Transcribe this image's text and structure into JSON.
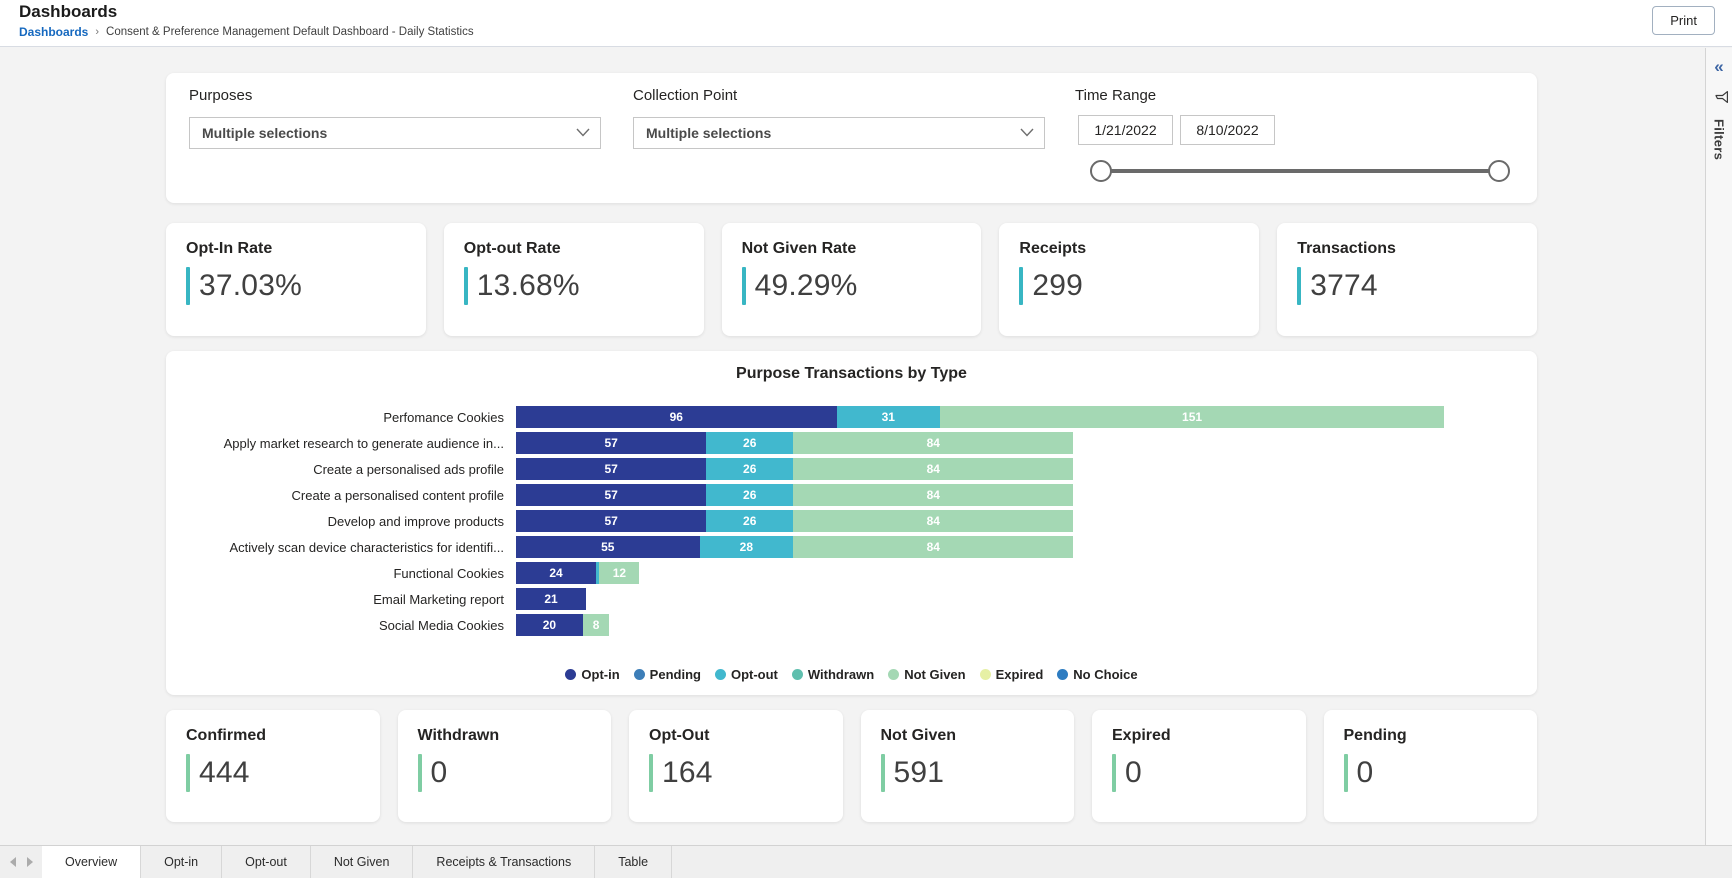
{
  "header": {
    "title": "Dashboards",
    "breadcrumb_root": "Dashboards",
    "breadcrumb_separator": "›",
    "breadcrumb_current": "Consent & Preference Management Default Dashboard - Daily Statistics",
    "print_label": "Print"
  },
  "filters_rail": {
    "collapse_icon": "«",
    "label": "Filters"
  },
  "filter_bar": {
    "purposes_label": "Purposes",
    "purposes_value": "Multiple selections",
    "collection_point_label": "Collection Point",
    "collection_point_value": "Multiple selections",
    "time_range_label": "Time Range",
    "start_date": "1/21/2022",
    "end_date": "8/10/2022"
  },
  "colors": {
    "kpi_top_accent": "#38B6C3",
    "kpi_bottom_accent": "#7FCDA3",
    "link_blue": "#1568BF"
  },
  "kpi_top": [
    {
      "label": "Opt-In Rate",
      "value": "37.03%"
    },
    {
      "label": "Opt-out Rate",
      "value": "13.68%"
    },
    {
      "label": "Not Given Rate",
      "value": "49.29%"
    },
    {
      "label": "Receipts",
      "value": "299"
    },
    {
      "label": "Transactions",
      "value": "3774"
    }
  ],
  "kpi_bottom": [
    {
      "label": "Confirmed",
      "value": "444"
    },
    {
      "label": "Withdrawn",
      "value": "0"
    },
    {
      "label": "Opt-Out",
      "value": "164"
    },
    {
      "label": "Not Given",
      "value": "591"
    },
    {
      "label": "Expired",
      "value": "0"
    },
    {
      "label": "Pending",
      "value": "0"
    }
  ],
  "chart_data": {
    "type": "bar",
    "orientation": "horizontal",
    "stacked": true,
    "title": "Purpose Transactions by Type",
    "axis_max": 278,
    "legend_position": "bottom",
    "categories": [
      "Perfomance Cookies",
      "Apply market research to generate audience in...",
      "Create a personalised ads profile",
      "Create a personalised content profile",
      "Develop and improve products",
      "Actively scan device characteristics for identifi...",
      "Functional Cookies",
      "Email Marketing report",
      "Social Media Cookies"
    ],
    "series": [
      {
        "name": "Opt-in",
        "color": "#2C3C94",
        "values": [
          96,
          57,
          57,
          57,
          57,
          55,
          24,
          21,
          20
        ]
      },
      {
        "name": "Pending",
        "color": "#3D7EB8",
        "values": [
          0,
          0,
          0,
          0,
          0,
          0,
          0,
          0,
          0
        ]
      },
      {
        "name": "Opt-out",
        "color": "#41B8CE",
        "values": [
          31,
          26,
          26,
          26,
          26,
          28,
          1,
          0,
          0
        ]
      },
      {
        "name": "Withdrawn",
        "color": "#5FBFAE",
        "values": [
          0,
          0,
          0,
          0,
          0,
          0,
          0,
          0,
          0
        ]
      },
      {
        "name": "Not Given",
        "color": "#A4D8B4",
        "values": [
          151,
          84,
          84,
          84,
          84,
          84,
          12,
          0,
          8
        ]
      },
      {
        "name": "Expired",
        "color": "#E6F0A4",
        "values": [
          0,
          0,
          0,
          0,
          0,
          0,
          0,
          0,
          0
        ]
      },
      {
        "name": "No Choice",
        "color": "#2D7CC1",
        "values": [
          0,
          0,
          0,
          0,
          0,
          0,
          0,
          0,
          0
        ]
      }
    ]
  },
  "footer_tabs": {
    "items": [
      "Overview",
      "Opt-in",
      "Opt-out",
      "Not Given",
      "Receipts & Transactions",
      "Table"
    ],
    "active": "Overview"
  }
}
